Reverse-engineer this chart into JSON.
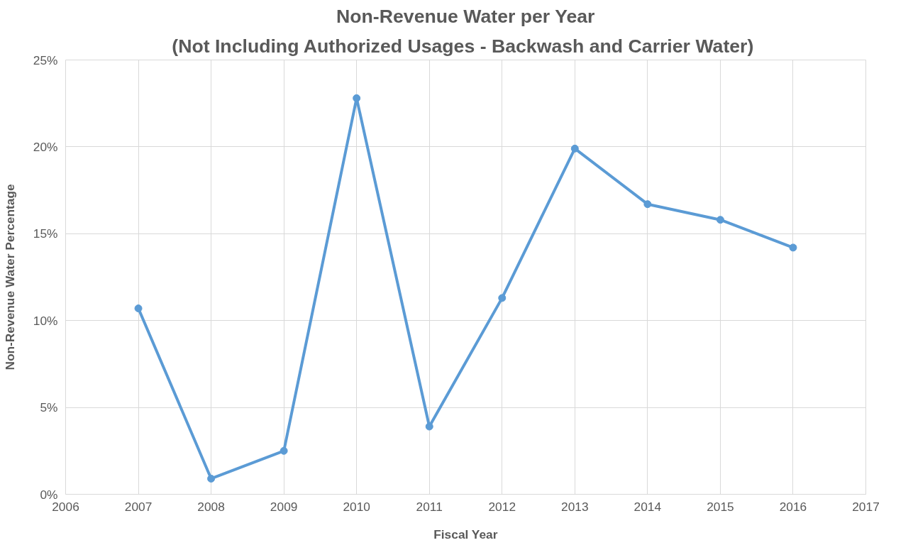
{
  "chart_data": {
    "type": "line",
    "title": "Non-Revenue Water per Year",
    "subtitle": "(Not Including Authorized Usages  - Backwash and Carrier Water)",
    "xlabel": "Fiscal Year",
    "ylabel": "Non-Revenue Water Percentage",
    "x": [
      2007,
      2008,
      2009,
      2010,
      2011,
      2012,
      2013,
      2014,
      2015,
      2016
    ],
    "series": [
      {
        "color": "#5b9bd5",
        "values": [
          10.7,
          0.9,
          2.5,
          22.8,
          3.9,
          11.3,
          19.9,
          16.7,
          15.8,
          14.2
        ]
      }
    ],
    "xlim": [
      2006,
      2017
    ],
    "xticks": [
      2006,
      2007,
      2008,
      2009,
      2010,
      2011,
      2012,
      2013,
      2014,
      2015,
      2016,
      2017
    ],
    "ylim": [
      0,
      25
    ],
    "yticks": [
      {
        "value": 0,
        "label": "0%"
      },
      {
        "value": 5,
        "label": "5%"
      },
      {
        "value": 10,
        "label": "10%"
      },
      {
        "value": 15,
        "label": "15%"
      },
      {
        "value": 20,
        "label": "20%"
      },
      {
        "value": 25,
        "label": "25%"
      }
    ],
    "grid": true,
    "marker": "circle",
    "line_style": "solid"
  }
}
